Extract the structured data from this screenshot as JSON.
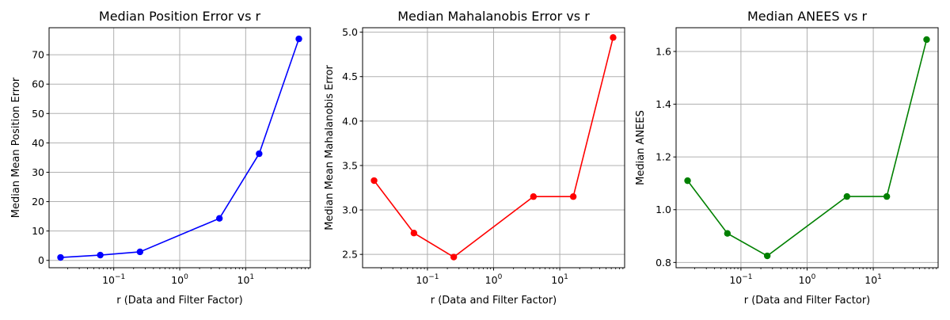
{
  "chart_data": [
    {
      "type": "line",
      "title": "Median Position Error vs r",
      "xlabel": "r (Data and Filter Factor)",
      "ylabel": "Median Mean Position Error",
      "xscale": "log",
      "xticks": [
        0.1,
        1,
        10
      ],
      "xtick_labels": [
        {
          "base": "10",
          "exp": "−1"
        },
        {
          "base": "10",
          "exp": "0"
        },
        {
          "base": "10",
          "exp": "1"
        }
      ],
      "ylim": [
        -2.5,
        79.2
      ],
      "yticks": [
        0,
        10,
        20,
        30,
        40,
        50,
        60,
        70
      ],
      "ytick_labels": [
        "0",
        "10",
        "20",
        "30",
        "40",
        "50",
        "60",
        "70"
      ],
      "grid": true,
      "color": "#0000ff",
      "series": [
        {
          "x": [
            0.015625,
            0.0625,
            0.25,
            4,
            16,
            64
          ],
          "y": [
            1.0,
            1.8,
            2.9,
            14.3,
            36.3,
            75.4
          ]
        }
      ]
    },
    {
      "type": "line",
      "title": "Median Mahalanobis Error vs r",
      "xlabel": "r (Data and Filter Factor)",
      "ylabel": "Median Mean Mahalanobis Error",
      "xscale": "log",
      "xticks": [
        0.1,
        1,
        10
      ],
      "xtick_labels": [
        {
          "base": "10",
          "exp": "−1"
        },
        {
          "base": "10",
          "exp": "0"
        },
        {
          "base": "10",
          "exp": "1"
        }
      ],
      "ylim": [
        2.35,
        5.05
      ],
      "yticks": [
        2.5,
        3.0,
        3.5,
        4.0,
        4.5,
        5.0
      ],
      "ytick_labels": [
        "2.5",
        "3.0",
        "3.5",
        "4.0",
        "4.5",
        "5.0"
      ],
      "grid": true,
      "color": "#ff0000",
      "series": [
        {
          "x": [
            0.015625,
            0.0625,
            0.25,
            4,
            16,
            64
          ],
          "y": [
            3.33,
            2.74,
            2.47,
            3.15,
            3.15,
            4.94
          ]
        }
      ]
    },
    {
      "type": "line",
      "title": "Median ANEES vs r",
      "xlabel": "r (Data and Filter Factor)",
      "ylabel": "Median ANEES",
      "xscale": "log",
      "xticks": [
        0.1,
        1,
        10
      ],
      "xtick_labels": [
        {
          "base": "10",
          "exp": "−1"
        },
        {
          "base": "10",
          "exp": "0"
        },
        {
          "base": "10",
          "exp": "1"
        }
      ],
      "ylim": [
        0.78,
        1.69
      ],
      "yticks": [
        0.8,
        1.0,
        1.2,
        1.4,
        1.6
      ],
      "ytick_labels": [
        "0.8",
        "1.0",
        "1.2",
        "1.4",
        "1.6"
      ],
      "grid": true,
      "color": "#008000",
      "series": [
        {
          "x": [
            0.015625,
            0.0625,
            0.25,
            4,
            16,
            64
          ],
          "y": [
            1.11,
            0.91,
            0.825,
            1.05,
            1.05,
            1.645
          ]
        }
      ]
    }
  ]
}
